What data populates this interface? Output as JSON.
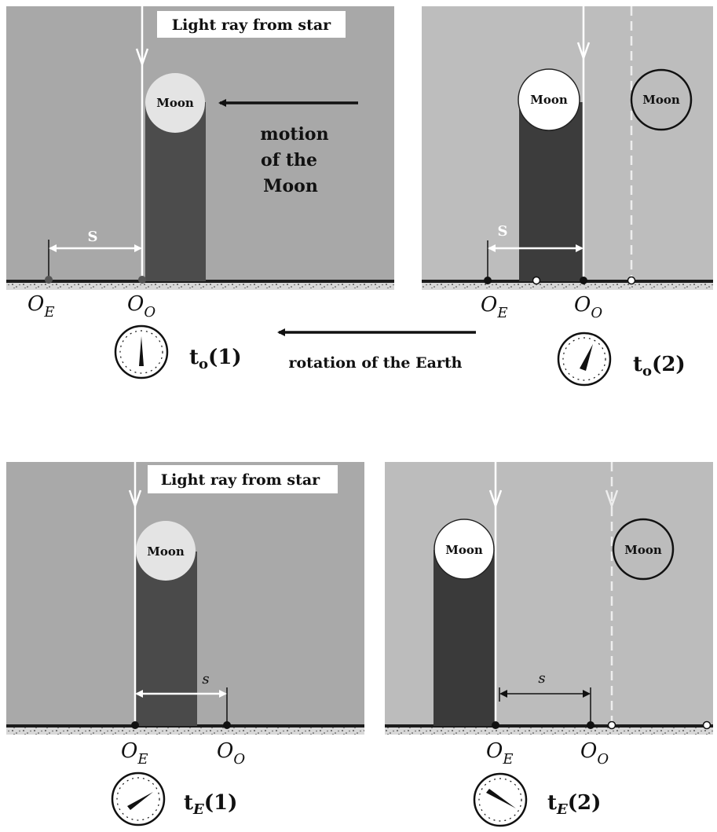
{
  "labels": {
    "light_ray": "Light ray from star",
    "moon": "Moon",
    "motion_line1": "motion",
    "motion_line2": "of the",
    "motion_line3": "Moon",
    "distance": "s",
    "distance_upper": "S",
    "observer_e_main": "O",
    "observer_e_sub": "E",
    "observer_o_main": "O",
    "observer_o_sub": "O",
    "rotation": "rotation of the Earth",
    "t_main": "t",
    "t_sub_o": "o",
    "t_sub_e": "E",
    "index1": "(1)",
    "index2": "(2)"
  },
  "colors": {
    "panel_gray": "#a9a9a9",
    "panel_light": "#b9b9b9",
    "shadow_dark": "#4a4a4a",
    "moon_fill": "#e4e4e4",
    "ground": "#1a1a1a"
  }
}
